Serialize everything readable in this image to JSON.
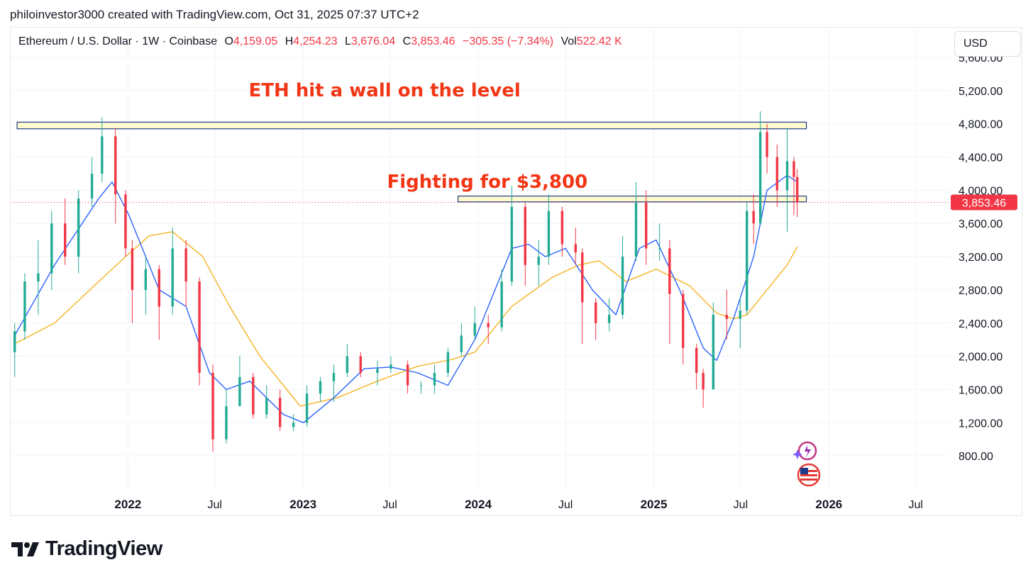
{
  "header": {
    "attribution": "philoinvestor3000 created with TradingView.com, Oct 31, 2025 07:37 UTC+2"
  },
  "legend": {
    "symbol": "Ethereum / U.S. Dollar · 1W · Coinbase",
    "open_label": "O",
    "open": "4,159.05",
    "high_label": "H",
    "high": "4,254.23",
    "low_label": "L",
    "low": "3,676.04",
    "close_label": "C",
    "close": "3,853.46",
    "change": "−305.35 (−7.34%)",
    "vol_label": "Vol",
    "vol": "522.42 K"
  },
  "currency_button": "USD",
  "footer": {
    "brand": "TradingView"
  },
  "colors": {
    "up": "#22ab94",
    "down": "#f23645",
    "ema_fast": "#2962ff",
    "ema_slow": "#f5b323",
    "annotation": "#f23615",
    "zone_fill": "#fff9c4",
    "zone_border": "#1e3a8a"
  },
  "icons": [
    "tv-logo-icon",
    "ai-sparkle-icon",
    "us-flag-icon"
  ],
  "chart_data": {
    "type": "candlestick",
    "title": "Ethereum / U.S. Dollar · 1W · Coinbase",
    "ylim": [
      400,
      5950
    ],
    "y_ticks": [
      800,
      1200,
      1600,
      2000,
      2400,
      2800,
      3200,
      3600,
      4000,
      4400,
      4800,
      5200,
      5600
    ],
    "y_tick_labels": [
      "800.00",
      "1,200.00",
      "1,600.00",
      "2,000.00",
      "2,400.00",
      "2,800.00",
      "3,200.00",
      "3,600.00",
      "4,000.00",
      "4,400.00",
      "4,800.00",
      "5,200.00",
      "5,600.00"
    ],
    "x_ticks": [
      {
        "date": "2022-01-01",
        "label": "2022",
        "bold": true
      },
      {
        "date": "2022-07-01",
        "label": "Jul",
        "bold": false
      },
      {
        "date": "2023-01-01",
        "label": "2023",
        "bold": true
      },
      {
        "date": "2023-07-01",
        "label": "Jul",
        "bold": false
      },
      {
        "date": "2024-01-01",
        "label": "2024",
        "bold": true
      },
      {
        "date": "2024-07-01",
        "label": "Jul",
        "bold": false
      },
      {
        "date": "2025-01-01",
        "label": "2025",
        "bold": true
      },
      {
        "date": "2025-07-01",
        "label": "Jul",
        "bold": false
      },
      {
        "date": "2026-01-01",
        "label": "2026",
        "bold": true
      },
      {
        "date": "2026-07-01",
        "label": "Jul",
        "bold": false
      }
    ],
    "grid": true,
    "last_price": 3853.46,
    "last_price_label": "3,853.46",
    "resistance_zones": [
      {
        "name": "upper-wall",
        "from_date": "2021-05-15",
        "to_date": "2025-11-15",
        "low": 4740,
        "high": 4820
      },
      {
        "name": "support-3800",
        "from_date": "2023-11-20",
        "to_date": "2025-11-15",
        "low": 3860,
        "high": 3930
      }
    ],
    "annotations": [
      {
        "text": "ETH hit a wall on the level",
        "date": "2023-06-20",
        "price": 5130
      },
      {
        "text": "Fighting for $3,800",
        "date": "2024-01-20",
        "price": 4030
      }
    ],
    "ema_fast_anchors": [
      [
        "2021-05-10",
        2250
      ],
      [
        "2021-08-01",
        3100
      ],
      [
        "2021-11-01",
        3900
      ],
      [
        "2021-11-29",
        4100
      ],
      [
        "2022-01-03",
        3700
      ],
      [
        "2022-03-07",
        2800
      ],
      [
        "2022-05-02",
        2600
      ],
      [
        "2022-06-20",
        1800
      ],
      [
        "2022-07-25",
        1600
      ],
      [
        "2022-09-12",
        1700
      ],
      [
        "2022-11-21",
        1300
      ],
      [
        "2023-01-02",
        1200
      ],
      [
        "2023-03-06",
        1500
      ],
      [
        "2023-05-08",
        1850
      ],
      [
        "2023-07-03",
        1870
      ],
      [
        "2023-08-28",
        1800
      ],
      [
        "2023-10-30",
        1650
      ],
      [
        "2023-12-25",
        2200
      ],
      [
        "2024-03-11",
        3300
      ],
      [
        "2024-04-15",
        3350
      ],
      [
        "2024-05-20",
        3200
      ],
      [
        "2024-07-01",
        3300
      ],
      [
        "2024-08-26",
        2800
      ],
      [
        "2024-10-14",
        2500
      ],
      [
        "2024-12-02",
        3300
      ],
      [
        "2025-01-06",
        3400
      ],
      [
        "2025-02-24",
        2800
      ],
      [
        "2025-04-14",
        2100
      ],
      [
        "2025-05-12",
        1950
      ],
      [
        "2025-06-16",
        2450
      ],
      [
        "2025-07-28",
        3200
      ],
      [
        "2025-08-25",
        4000
      ],
      [
        "2025-10-06",
        4180
      ],
      [
        "2025-10-27",
        4100
      ]
    ],
    "ema_slow_anchors": [
      [
        "2021-05-10",
        2150
      ],
      [
        "2021-08-01",
        2400
      ],
      [
        "2021-11-01",
        2900
      ],
      [
        "2021-12-27",
        3200
      ],
      [
        "2022-02-14",
        3450
      ],
      [
        "2022-04-04",
        3500
      ],
      [
        "2022-06-06",
        3200
      ],
      [
        "2022-08-01",
        2600
      ],
      [
        "2022-10-03",
        2000
      ],
      [
        "2022-11-28",
        1600
      ],
      [
        "2022-12-26",
        1400
      ],
      [
        "2023-03-13",
        1500
      ],
      [
        "2023-06-05",
        1700
      ],
      [
        "2023-08-28",
        1880
      ],
      [
        "2023-11-06",
        1960
      ],
      [
        "2023-12-25",
        2050
      ],
      [
        "2024-03-11",
        2600
      ],
      [
        "2024-06-03",
        2950
      ],
      [
        "2024-07-29",
        3100
      ],
      [
        "2024-09-09",
        3150
      ],
      [
        "2024-11-04",
        2900
      ],
      [
        "2025-01-06",
        3050
      ],
      [
        "2025-03-17",
        2850
      ],
      [
        "2025-05-12",
        2520
      ],
      [
        "2025-06-16",
        2450
      ],
      [
        "2025-07-14",
        2500
      ],
      [
        "2025-08-25",
        2800
      ],
      [
        "2025-10-06",
        3100
      ],
      [
        "2025-10-27",
        3320
      ]
    ],
    "candles": [
      [
        "2021-05-10",
        2050,
        2300,
        2400,
        1750
      ],
      [
        "2021-05-31",
        2300,
        2900,
        3000,
        2200
      ],
      [
        "2021-06-28",
        2900,
        3000,
        3400,
        2500
      ],
      [
        "2021-07-26",
        3000,
        3600,
        3750,
        2800
      ],
      [
        "2021-08-23",
        3600,
        3200,
        3900,
        3100
      ],
      [
        "2021-09-20",
        3200,
        3900,
        4000,
        3000
      ],
      [
        "2021-10-18",
        3900,
        4200,
        4400,
        3800
      ],
      [
        "2021-11-08",
        4200,
        4650,
        4880,
        4100
      ],
      [
        "2021-12-06",
        4650,
        3950,
        4750,
        3600
      ],
      [
        "2021-12-27",
        3950,
        3300,
        4000,
        3200
      ],
      [
        "2022-01-10",
        3300,
        2800,
        3400,
        2400
      ],
      [
        "2022-02-07",
        2800,
        3050,
        3200,
        2500
      ],
      [
        "2022-03-07",
        3050,
        2600,
        3100,
        2200
      ],
      [
        "2022-04-04",
        2600,
        3300,
        3550,
        2500
      ],
      [
        "2022-05-02",
        3300,
        2900,
        3400,
        2600
      ],
      [
        "2022-05-30",
        2900,
        1800,
        2950,
        1650
      ],
      [
        "2022-06-27",
        1800,
        1000,
        1900,
        850
      ],
      [
        "2022-07-25",
        1000,
        1400,
        1600,
        950
      ],
      [
        "2022-08-22",
        1400,
        1750,
        2000,
        1400
      ],
      [
        "2022-09-19",
        1750,
        1300,
        1800,
        1250
      ],
      [
        "2022-10-17",
        1300,
        1500,
        1650,
        1250
      ],
      [
        "2022-11-14",
        1500,
        1150,
        1600,
        1100
      ],
      [
        "2022-12-12",
        1150,
        1200,
        1300,
        1100
      ],
      [
        "2023-01-09",
        1200,
        1550,
        1650,
        1150
      ],
      [
        "2023-02-06",
        1550,
        1700,
        1750,
        1450
      ],
      [
        "2023-03-06",
        1700,
        1800,
        1900,
        1450
      ],
      [
        "2023-04-03",
        1800,
        2000,
        2150,
        1750
      ],
      [
        "2023-05-01",
        2000,
        1800,
        2050,
        1750
      ],
      [
        "2023-06-05",
        1800,
        1850,
        1950,
        1650
      ],
      [
        "2023-07-03",
        1850,
        1900,
        2000,
        1800
      ],
      [
        "2023-08-07",
        1900,
        1650,
        1950,
        1550
      ],
      [
        "2023-09-04",
        1650,
        1650,
        1700,
        1550
      ],
      [
        "2023-10-02",
        1650,
        1800,
        1900,
        1550
      ],
      [
        "2023-10-30",
        1800,
        2050,
        2100,
        1750
      ],
      [
        "2023-11-27",
        2050,
        2250,
        2400,
        2000
      ],
      [
        "2023-12-25",
        2250,
        2400,
        2600,
        2200
      ],
      [
        "2024-01-22",
        2400,
        2350,
        2500,
        2150
      ],
      [
        "2024-02-19",
        2350,
        2900,
        3050,
        2300
      ],
      [
        "2024-03-11",
        2900,
        3800,
        4050,
        2850
      ],
      [
        "2024-04-08",
        3800,
        3100,
        3850,
        2850
      ],
      [
        "2024-05-06",
        3100,
        3200,
        3400,
        2850
      ],
      [
        "2024-05-27",
        3200,
        3750,
        3950,
        3100
      ],
      [
        "2024-06-24",
        3750,
        3350,
        3800,
        3200
      ],
      [
        "2024-07-22",
        3350,
        3250,
        3550,
        3100
      ],
      [
        "2024-08-05",
        3250,
        2650,
        3300,
        2150
      ],
      [
        "2024-09-02",
        2650,
        2400,
        2700,
        2200
      ],
      [
        "2024-09-30",
        2400,
        2500,
        2700,
        2300
      ],
      [
        "2024-10-28",
        2500,
        3200,
        3450,
        2450
      ],
      [
        "2024-11-25",
        3200,
        3850,
        4100,
        3150
      ],
      [
        "2024-12-16",
        3850,
        3300,
        4000,
        3100
      ],
      [
        "2025-01-13",
        3300,
        3300,
        3600,
        3150
      ],
      [
        "2025-02-03",
        3300,
        2750,
        3400,
        2150
      ],
      [
        "2025-03-03",
        2750,
        2100,
        2800,
        1900
      ],
      [
        "2025-03-31",
        2100,
        1800,
        2150,
        1600
      ],
      [
        "2025-04-14",
        1800,
        1600,
        1850,
        1380
      ],
      [
        "2025-05-05",
        1600,
        2500,
        2650,
        1600
      ],
      [
        "2025-06-02",
        2500,
        2450,
        2800,
        2200
      ],
      [
        "2025-06-30",
        2450,
        2550,
        2700,
        2100
      ],
      [
        "2025-07-14",
        2550,
        3750,
        3850,
        2500
      ],
      [
        "2025-07-28",
        3750,
        3600,
        3950,
        3350
      ],
      [
        "2025-08-11",
        3600,
        4700,
        4950,
        3600
      ],
      [
        "2025-08-25",
        4700,
        4400,
        4800,
        4200
      ],
      [
        "2025-09-15",
        4400,
        4000,
        4550,
        3800
      ],
      [
        "2025-10-06",
        4000,
        4350,
        4750,
        3500
      ],
      [
        "2025-10-20",
        4350,
        4159,
        4400,
        3700
      ],
      [
        "2025-10-27",
        4159.05,
        3853.46,
        4254.23,
        3676.04
      ]
    ]
  }
}
